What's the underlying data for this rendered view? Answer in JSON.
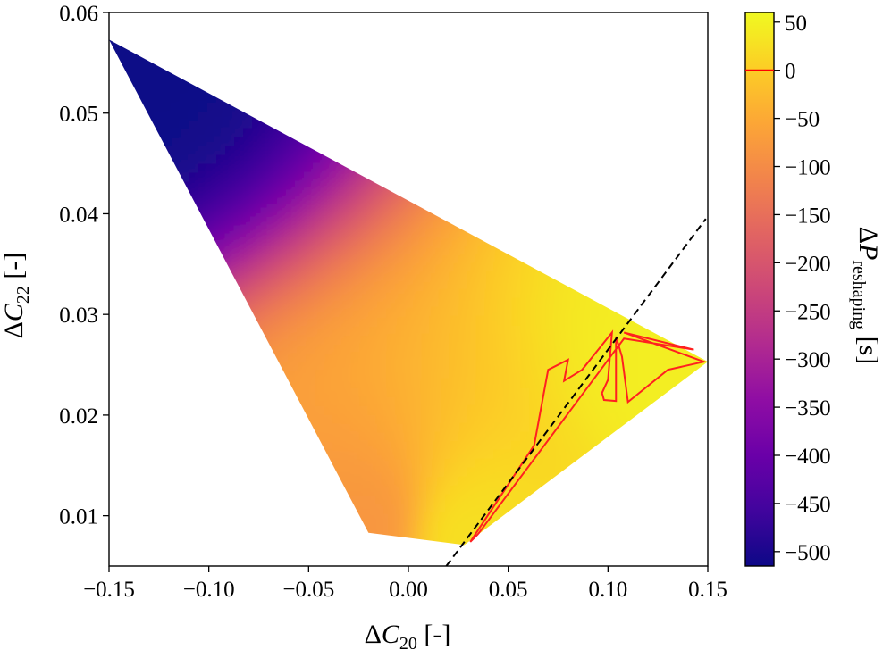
{
  "chart_data": {
    "type": "heatmap",
    "title": "",
    "xlabel": {
      "prefix": "Δ",
      "var": "C",
      "sub": "20",
      "unit": " [-]"
    },
    "ylabel": {
      "prefix": "Δ",
      "var": "C",
      "sub": "22",
      "unit": " [-]"
    },
    "colorbar_label": {
      "prefix": "Δ",
      "var": "P",
      "sub": "reshaping",
      "unit": " [s]"
    },
    "xlim": [
      -0.15,
      0.15
    ],
    "ylim": [
      0.005,
      0.06
    ],
    "xticks": [
      -0.15,
      -0.1,
      -0.05,
      0.0,
      0.05,
      0.1,
      0.15
    ],
    "xtick_labels": [
      "−0.15",
      "−0.10",
      "−0.05",
      "0.00",
      "0.05",
      "0.10",
      "0.15"
    ],
    "yticks": [
      0.01,
      0.02,
      0.03,
      0.04,
      0.05,
      0.06
    ],
    "ytick_labels": [
      "0.01",
      "0.02",
      "0.03",
      "0.04",
      "0.05",
      "0.06"
    ],
    "colorbar": {
      "colormap": "plasma",
      "range": [
        -515,
        60
      ],
      "ticks": [
        50,
        0,
        -50,
        -100,
        -150,
        -200,
        -250,
        -300,
        -350,
        -400,
        -450,
        -500
      ],
      "tick_labels": [
        "50",
        "0",
        "−50",
        "−100",
        "−150",
        "−200",
        "−250",
        "−300",
        "−350",
        "−400",
        "−450",
        "−500"
      ],
      "zero_marker_color": "#ff0000"
    },
    "field_region": [
      [
        -0.15,
        0.0573
      ],
      [
        0.15,
        0.0253
      ],
      [
        0.028,
        0.0071
      ],
      [
        -0.02,
        0.0083
      ]
    ],
    "color_samples": [
      {
        "x": -0.15,
        "y": 0.0573,
        "value": -515
      },
      {
        "x": 0.15,
        "y": 0.0253,
        "value": 45
      },
      {
        "x": 0.028,
        "y": 0.0071,
        "value": 25
      },
      {
        "x": -0.02,
        "y": 0.0083,
        "value": -80
      }
    ],
    "zero_contour": [
      [
        0.035,
        0.0082
      ],
      [
        0.031,
        0.0074
      ],
      [
        0.063,
        0.017
      ],
      [
        0.07,
        0.0245
      ],
      [
        0.08,
        0.0255
      ],
      [
        0.078,
        0.0234
      ],
      [
        0.087,
        0.0245
      ],
      [
        0.102,
        0.0282
      ],
      [
        0.1,
        0.0235
      ],
      [
        0.097,
        0.0222
      ],
      [
        0.098,
        0.0215
      ],
      [
        0.104,
        0.0214
      ],
      [
        0.104,
        0.0278
      ],
      [
        0.107,
        0.0258
      ],
      [
        0.11,
        0.0213
      ],
      [
        0.13,
        0.0245
      ],
      [
        0.148,
        0.0253
      ],
      [
        0.108,
        0.0282
      ],
      [
        0.143,
        0.0265
      ],
      [
        0.108,
        0.0276
      ],
      [
        0.035,
        0.0082
      ]
    ],
    "zero_contour_color": "#ff2020",
    "dashed_line": [
      [
        0.019,
        0.005
      ],
      [
        0.149,
        0.0395
      ]
    ],
    "dashed_line_color": "#000000"
  }
}
